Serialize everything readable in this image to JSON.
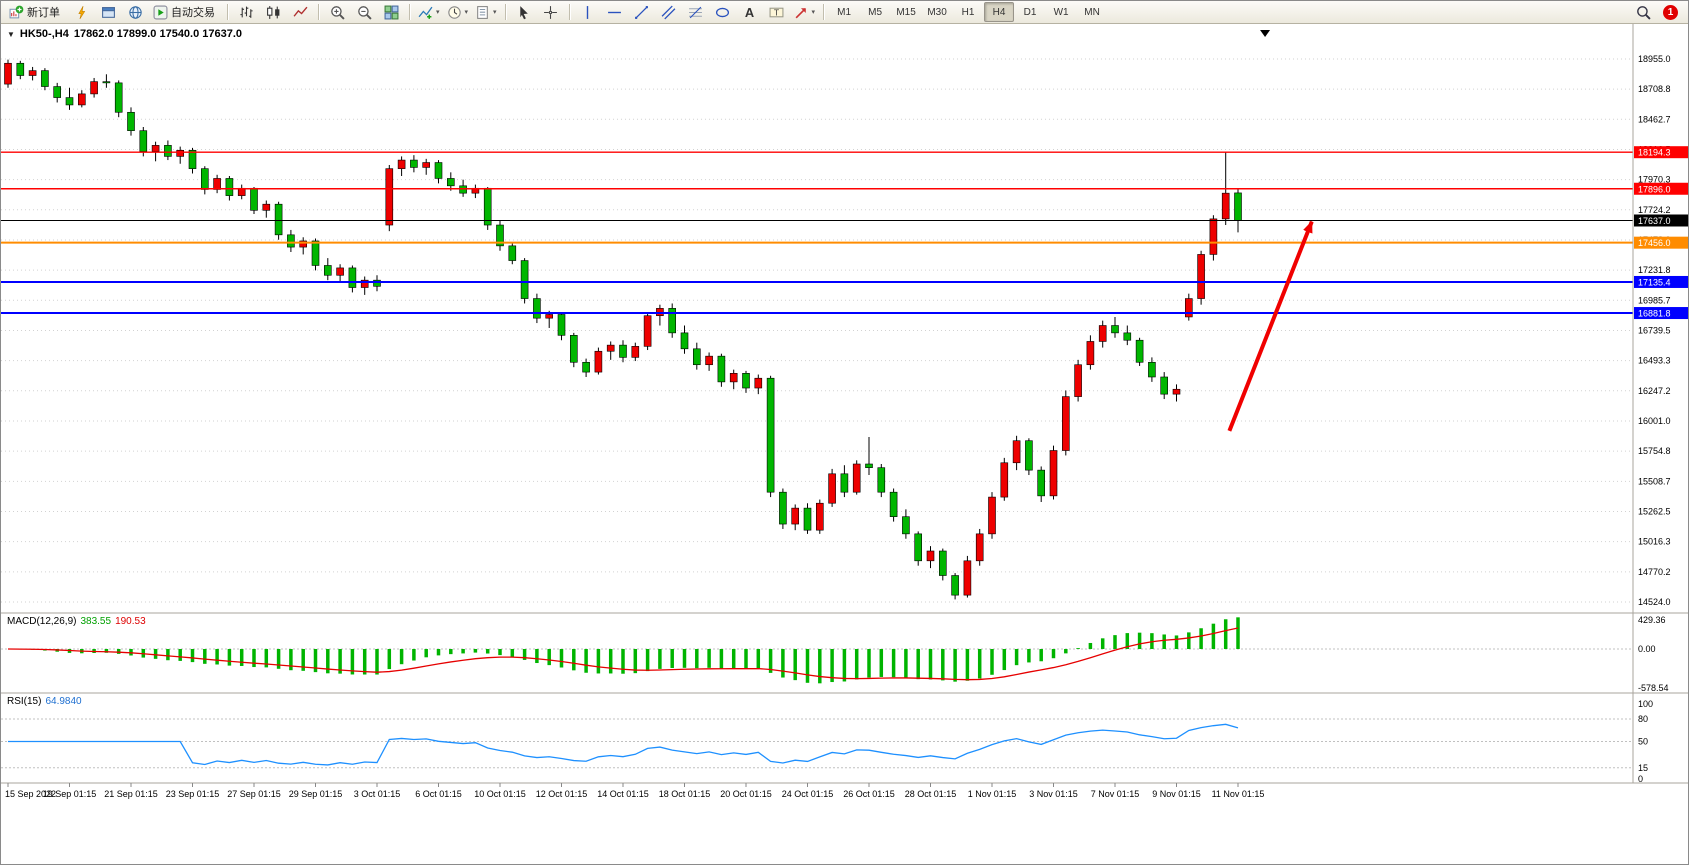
{
  "toolbar": {
    "groups": [
      {
        "items": [
          {
            "name": "new-order-button",
            "icon": "new-order",
            "label": "新订单"
          },
          {
            "name": "expert-advisors-button",
            "icon": "lightning"
          },
          {
            "name": "chart-window-button",
            "icon": "window"
          },
          {
            "name": "market-watch-button",
            "icon": "globe"
          },
          {
            "name": "auto-trading-button",
            "icon": "autotrade",
            "label": "自动交易"
          }
        ]
      },
      {
        "items": [
          {
            "name": "bar-chart-button",
            "icon": "bars"
          },
          {
            "name": "candlestick-chart-button",
            "icon": "candles"
          },
          {
            "name": "line-chart-button",
            "icon": "line"
          }
        ]
      },
      {
        "items": [
          {
            "name": "zoom-in-button",
            "icon": "zoom-in"
          },
          {
            "name": "zoom-out-button",
            "icon": "zoom-out"
          },
          {
            "name": "tile-windows-button",
            "icon": "tiles"
          }
        ]
      },
      {
        "items": [
          {
            "name": "indicators-list-button",
            "icon": "indicators",
            "dropdown": true
          },
          {
            "name": "periods-button",
            "icon": "periods",
            "dropdown": true
          },
          {
            "name": "templates-button",
            "icon": "templates",
            "dropdown": true
          }
        ]
      },
      {
        "items": [
          {
            "name": "cursor-button",
            "icon": "cursor"
          },
          {
            "name": "crosshair-button",
            "icon": "crosshair"
          }
        ]
      },
      {
        "items": [
          {
            "name": "vertical-line-button",
            "icon": "vline"
          },
          {
            "name": "horizontal-line-button",
            "icon": "hline"
          },
          {
            "name": "trendline-button",
            "icon": "trendline"
          },
          {
            "name": "equidistant-channel-button",
            "icon": "channel"
          },
          {
            "name": "fibonacci-button",
            "icon": "fibonacci"
          },
          {
            "name": "shapes-button",
            "icon": "shapes"
          },
          {
            "name": "text-button",
            "icon": "text"
          },
          {
            "name": "text-label-button",
            "icon": "label"
          },
          {
            "name": "arrows-button",
            "icon": "arrows",
            "dropdown": true
          }
        ]
      },
      {
        "items": [
          {
            "name": "timeframe-m1-button",
            "text": "M1"
          },
          {
            "name": "timeframe-m5-button",
            "text": "M5"
          },
          {
            "name": "timeframe-m15-button",
            "text": "M15"
          },
          {
            "name": "timeframe-m30-button",
            "text": "M30"
          },
          {
            "name": "timeframe-h1-button",
            "text": "H1"
          },
          {
            "name": "timeframe-h4-button",
            "text": "H4",
            "active": true
          },
          {
            "name": "timeframe-d1-button",
            "text": "D1"
          },
          {
            "name": "timeframe-w1-button",
            "text": "W1"
          },
          {
            "name": "timeframe-mn-button",
            "text": "MN"
          }
        ]
      }
    ],
    "right": [
      {
        "name": "search-button",
        "icon": "magnifier"
      },
      {
        "name": "notifications-badge",
        "badge": "1"
      }
    ]
  },
  "chart": {
    "title": "HK50-,H4",
    "ohlc_text": "17862.0 17899.0 17540.0 17637.0"
  },
  "panel_labels": {
    "macd_title": "MACD(12,26,9)",
    "macd_main": "383.55",
    "macd_signal": "190.53",
    "rsi_title": "RSI(15)",
    "rsi_value": "64.9840"
  },
  "chart_data": {
    "type": "candlestick",
    "symbol": "HK50-",
    "timeframe": "H4",
    "last_ohlc": {
      "open": 17862.0,
      "high": 17899.0,
      "low": 17540.0,
      "close": 17637.0
    },
    "ylim": [
      14524.0,
      18955.0
    ],
    "price_axis": [
      18955.0,
      18708.8,
      18462.7,
      18216.5,
      17970.3,
      17724.2,
      17478.0,
      17231.8,
      16985.7,
      16739.5,
      16493.3,
      16247.2,
      16001.0,
      15754.8,
      15508.7,
      15262.5,
      15016.3,
      14770.2,
      14524.0
    ],
    "time_labels": [
      "15 Sep 2022",
      "19 Sep 01:15",
      "21 Sep 01:15",
      "23 Sep 01:15",
      "27 Sep 01:15",
      "29 Sep 01:15",
      "3 Oct 01:15",
      "6 Oct 01:15",
      "10 Oct 01:15",
      "12 Oct 01:15",
      "14 Oct 01:15",
      "18 Oct 01:15",
      "20 Oct 01:15",
      "24 Oct 01:15",
      "26 Oct 01:15",
      "28 Oct 01:15",
      "1 Nov 01:15",
      "3 Nov 01:15",
      "7 Nov 01:15",
      "9 Nov 01:15",
      "11 Nov 01:15"
    ],
    "bars_per_label": 5,
    "bull_color": "#ee0000",
    "bear_color": "#00b600",
    "candles": [
      [
        18750,
        18950,
        18720,
        18920
      ],
      [
        18920,
        18940,
        18790,
        18820
      ],
      [
        18820,
        18890,
        18780,
        18860
      ],
      [
        18860,
        18880,
        18700,
        18730
      ],
      [
        18730,
        18760,
        18600,
        18640
      ],
      [
        18640,
        18720,
        18540,
        18580
      ],
      [
        18580,
        18700,
        18560,
        18670
      ],
      [
        18670,
        18800,
        18640,
        18770
      ],
      [
        18770,
        18830,
        18720,
        18760
      ],
      [
        18760,
        18780,
        18480,
        18520
      ],
      [
        18520,
        18560,
        18330,
        18370
      ],
      [
        18370,
        18400,
        18160,
        18200
      ],
      [
        18200,
        18280,
        18120,
        18250
      ],
      [
        18250,
        18290,
        18130,
        18160
      ],
      [
        18160,
        18240,
        18100,
        18210
      ],
      [
        18210,
        18230,
        18020,
        18060
      ],
      [
        18060,
        18080,
        17850,
        17890
      ],
      [
        17890,
        18010,
        17860,
        17980
      ],
      [
        17980,
        18000,
        17800,
        17840
      ],
      [
        17840,
        17930,
        17810,
        17900
      ],
      [
        17900,
        17910,
        17690,
        17720
      ],
      [
        17720,
        17800,
        17660,
        17770
      ],
      [
        17770,
        17790,
        17480,
        17520
      ],
      [
        17520,
        17560,
        17380,
        17420
      ],
      [
        17420,
        17500,
        17360,
        17470
      ],
      [
        17470,
        17490,
        17230,
        17270
      ],
      [
        17270,
        17330,
        17150,
        17190
      ],
      [
        17190,
        17280,
        17140,
        17250
      ],
      [
        17250,
        17270,
        17050,
        17090
      ],
      [
        17090,
        17180,
        17030,
        17150
      ],
      [
        17150,
        17190,
        17060,
        17100
      ],
      [
        17600,
        18090,
        17550,
        18060
      ],
      [
        18060,
        18160,
        18000,
        18130
      ],
      [
        18130,
        18170,
        18030,
        18070
      ],
      [
        18070,
        18140,
        18010,
        18110
      ],
      [
        18110,
        18130,
        17940,
        17980
      ],
      [
        17980,
        18030,
        17880,
        17920
      ],
      [
        17920,
        17970,
        17830,
        17860
      ],
      [
        17860,
        17930,
        17820,
        17900
      ],
      [
        17900,
        17910,
        17560,
        17600
      ],
      [
        17600,
        17640,
        17390,
        17430
      ],
      [
        17430,
        17460,
        17280,
        17310
      ],
      [
        17310,
        17330,
        16960,
        17000
      ],
      [
        17000,
        17040,
        16800,
        16840
      ],
      [
        16840,
        16900,
        16760,
        16870
      ],
      [
        16870,
        16890,
        16660,
        16700
      ],
      [
        16700,
        16720,
        16440,
        16480
      ],
      [
        16480,
        16510,
        16360,
        16400
      ],
      [
        16400,
        16600,
        16380,
        16570
      ],
      [
        16570,
        16650,
        16500,
        16620
      ],
      [
        16620,
        16660,
        16480,
        16520
      ],
      [
        16520,
        16640,
        16490,
        16610
      ],
      [
        16610,
        16890,
        16580,
        16860
      ],
      [
        16860,
        16950,
        16780,
        16920
      ],
      [
        16920,
        16960,
        16680,
        16720
      ],
      [
        16720,
        16780,
        16550,
        16590
      ],
      [
        16590,
        16640,
        16420,
        16460
      ],
      [
        16460,
        16560,
        16410,
        16530
      ],
      [
        16530,
        16550,
        16280,
        16320
      ],
      [
        16320,
        16420,
        16260,
        16390
      ],
      [
        16390,
        16410,
        16230,
        16270
      ],
      [
        16270,
        16380,
        16220,
        16350
      ],
      [
        16350,
        16370,
        15380,
        15420
      ],
      [
        15420,
        15450,
        15120,
        15160
      ],
      [
        15160,
        15320,
        15110,
        15290
      ],
      [
        15290,
        15330,
        15080,
        15110
      ],
      [
        15110,
        15360,
        15080,
        15330
      ],
      [
        15330,
        15610,
        15300,
        15570
      ],
      [
        15570,
        15640,
        15380,
        15420
      ],
      [
        15420,
        15680,
        15400,
        15650
      ],
      [
        15650,
        15870,
        15560,
        15620
      ],
      [
        15620,
        15650,
        15380,
        15420
      ],
      [
        15420,
        15450,
        15180,
        15220
      ],
      [
        15220,
        15280,
        15040,
        15080
      ],
      [
        15080,
        15100,
        14820,
        14860
      ],
      [
        14860,
        14980,
        14800,
        14940
      ],
      [
        14940,
        14960,
        14700,
        14740
      ],
      [
        14740,
        14760,
        14545,
        14580
      ],
      [
        14580,
        14900,
        14560,
        14860
      ],
      [
        14860,
        15120,
        14820,
        15080
      ],
      [
        15080,
        15420,
        15040,
        15380
      ],
      [
        15380,
        15700,
        15350,
        15660
      ],
      [
        15660,
        15880,
        15600,
        15840
      ],
      [
        15840,
        15860,
        15560,
        15600
      ],
      [
        15600,
        15630,
        15340,
        15390
      ],
      [
        15390,
        15800,
        15360,
        15760
      ],
      [
        15760,
        16250,
        15720,
        16200
      ],
      [
        16200,
        16500,
        16160,
        16460
      ],
      [
        16460,
        16700,
        16420,
        16650
      ],
      [
        16650,
        16820,
        16600,
        16780
      ],
      [
        16780,
        16850,
        16680,
        16720
      ],
      [
        16720,
        16780,
        16620,
        16660
      ],
      [
        16660,
        16680,
        16450,
        16480
      ],
      [
        16480,
        16520,
        16320,
        16360
      ],
      [
        16360,
        16400,
        16180,
        16220
      ],
      [
        16220,
        16300,
        16160,
        16260
      ],
      [
        16850,
        17040,
        16820,
        17000
      ],
      [
        17000,
        17390,
        16950,
        17360
      ],
      [
        17360,
        17680,
        17310,
        17650
      ],
      [
        17650,
        18195,
        17600,
        17860
      ],
      [
        17862,
        17899,
        17540,
        17637
      ]
    ],
    "horizontal_lines": [
      {
        "price": 18194.3,
        "label": "18194.3",
        "color": "#ff0000",
        "width": 1.4
      },
      {
        "price": 17896.0,
        "label": "17896.0",
        "color": "#ff0000",
        "width": 1.4
      },
      {
        "price": 17637.0,
        "label": "17637.0",
        "color": "#000000",
        "width": 1
      },
      {
        "price": 17456.0,
        "label": "17456.0",
        "color": "#ff8c00",
        "width": 2
      },
      {
        "price": 17135.4,
        "label": "17135.4",
        "color": "#0000ff",
        "width": 2
      },
      {
        "price": 16881.8,
        "label": "16881.8",
        "color": "#0000ff",
        "width": 2
      }
    ],
    "trend_arrow": {
      "from_bar": 99.3,
      "from_price": 15920,
      "to_bar": 106,
      "to_price": 17628,
      "color": "#f00000"
    },
    "shift_marker_bar": 102.2,
    "indicators": [
      {
        "name": "MACD",
        "params": [
          12,
          26,
          9
        ],
        "current_main": 383.55,
        "current_signal": 190.53,
        "scale": [
          429.36,
          0.0,
          -578.54
        ],
        "histogram_color": "#00b400",
        "signal_color": "#e60000"
      },
      {
        "name": "RSI",
        "params": [
          15
        ],
        "current": 64.984,
        "scale": [
          100,
          80,
          50,
          15,
          0
        ],
        "levels": [
          80,
          50,
          15
        ],
        "line_color": "#1e90ff"
      }
    ]
  }
}
